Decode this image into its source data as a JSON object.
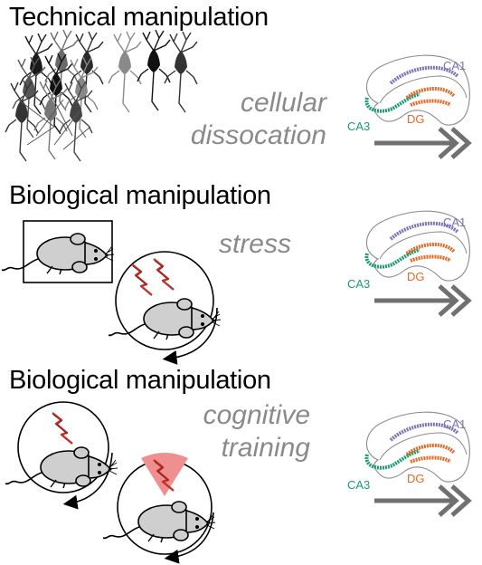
{
  "panels": [
    {
      "title": "Technical manipulation",
      "caption": [
        "cellular",
        "dissocation"
      ]
    },
    {
      "title": "Biological manipulation",
      "caption": [
        "stress"
      ]
    },
    {
      "title": "Biological manipulation",
      "caption": [
        "cognitive",
        "training"
      ]
    }
  ],
  "hippocampus": {
    "ca1": "CA1",
    "ca3": "CA3",
    "dg": "DG"
  },
  "colors": {
    "ca1": "#7d72b6",
    "ca3": "#1a9a74",
    "dg": "#e06a26",
    "arrow": "#707070",
    "stress": "#c0312b",
    "cue": "#f08f8f",
    "mouse": "#cfcfcf"
  }
}
